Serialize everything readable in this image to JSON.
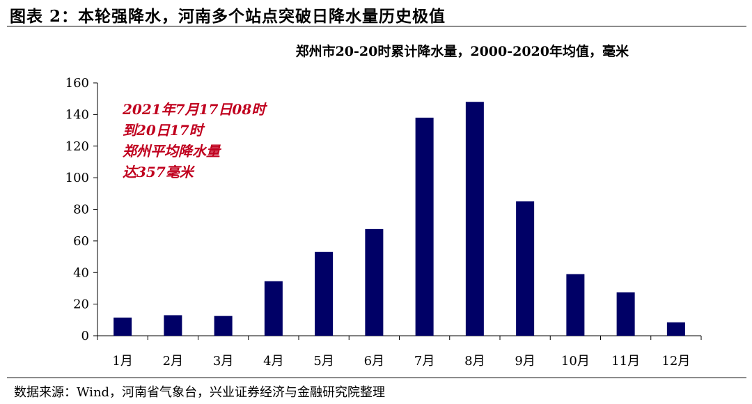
{
  "figure": {
    "title": "图表 2：本轮强降水，河南多个站点突破日降水量历史极值",
    "source": "数据来源：Wind，河南省气象台，兴业证券经济与金融研究院整理"
  },
  "chart_data": {
    "type": "bar",
    "title": "郑州市20-20时累计降水量，2000-2020年均值，毫米",
    "xlabel": "",
    "ylabel": "",
    "categories": [
      "1月",
      "2月",
      "3月",
      "4月",
      "5月",
      "6月",
      "7月",
      "8月",
      "9月",
      "10月",
      "11月",
      "12月"
    ],
    "values": [
      11.5,
      13,
      12.5,
      34.5,
      53,
      67.5,
      138,
      148,
      85,
      39,
      27.5,
      8.5
    ],
    "ylim": [
      0,
      160
    ],
    "yticks": [
      0,
      20,
      40,
      60,
      80,
      100,
      120,
      140,
      160
    ],
    "grid": false,
    "bar_color": "#000066",
    "annotation": {
      "lines": [
        "2021年7月17日08时",
        "到20日17时",
        "郑州平均降水量",
        "达357毫米"
      ],
      "color": "#C0001E"
    }
  }
}
